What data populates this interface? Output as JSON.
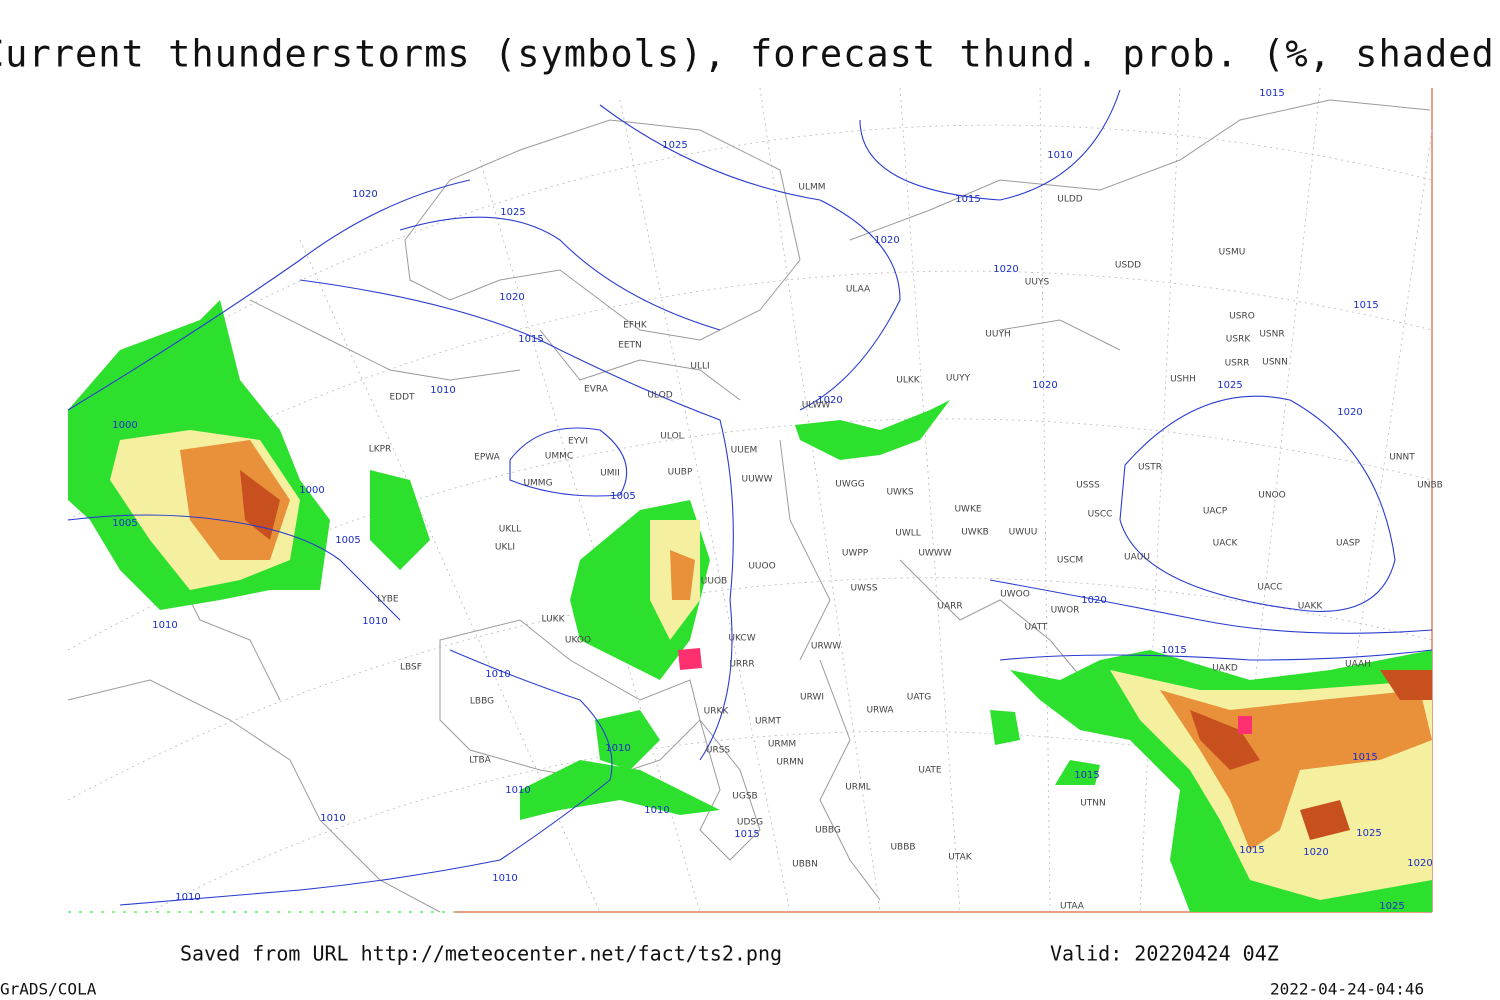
{
  "title": "Current thunderstorms (symbols), forecast thund. prob. (%, shaded)",
  "isobar_labels": [
    "1025",
    "1010",
    "1015",
    "1015",
    "1020",
    "1025",
    "1020",
    "1020",
    "1020",
    "1015",
    "1015",
    "1010",
    "1025",
    "1020",
    "1020",
    "1020",
    "1000",
    "1000",
    "1005",
    "1005",
    "1005",
    "1010",
    "1010",
    "1020",
    "1015",
    "1010",
    "1010",
    "1015",
    "1015",
    "1010",
    "1010",
    "1010",
    "1015",
    "1025",
    "1015",
    "1020",
    "1020",
    "1010",
    "1010",
    "1025"
  ],
  "stations": [
    "ULMM",
    "ULDD",
    "USDD",
    "USMU",
    "UUYS",
    "ULAA",
    "EFHK",
    "EETN",
    "ULLI",
    "UUYH",
    "USRO",
    "USRK",
    "USNR",
    "USRR",
    "USNN",
    "ULKK",
    "UUYY",
    "USHH",
    "EVRA",
    "ULOD",
    "ULWW",
    "EDDT",
    "EYVI",
    "UMMC",
    "ULOL",
    "UUEM",
    "EPWA",
    "UMMG",
    "UMII",
    "UUBP",
    "UUWW",
    "UWGG",
    "UWKS",
    "USSS",
    "USTR",
    "UNOO",
    "UNNT",
    "UNBB",
    "LKPR",
    "UKLL",
    "UKLI",
    "UUOO",
    "UWPP",
    "UWWW",
    "UWLL",
    "UWKE",
    "UWKB",
    "UWUU",
    "USCC",
    "UACP",
    "UACK",
    "UASP",
    "USCM",
    "UAUU",
    "UUOB",
    "UWSS",
    "UACC",
    "UARR",
    "UWOO",
    "UWOR",
    "UAKK",
    "LYBE",
    "LUKK",
    "UKOO",
    "UKCW",
    "URWW",
    "URRR",
    "UATT",
    "UAKD",
    "UAAH",
    "LBSF",
    "UATG",
    "URWI",
    "LBBG",
    "URKK",
    "URMT",
    "URWA",
    "URSS",
    "URMM",
    "UATE",
    "URMN",
    "LTBA",
    "UGSB",
    "UDSG",
    "UBBG",
    "UBBN",
    "URML",
    "UBBB",
    "UTAK",
    "UTNN",
    "UTAA"
  ],
  "footer": {
    "saved": "Saved from URL http://meteocenter.net/fact/ts2.png",
    "valid": "Valid: 20220424 04Z",
    "software": "GrADS/COLA",
    "timestamp": "2022-04-24-04:46"
  }
}
